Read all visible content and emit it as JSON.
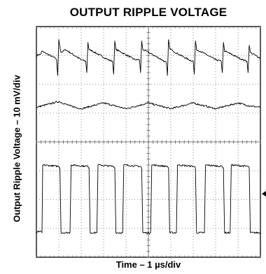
{
  "chart_data": {
    "type": "line",
    "title": "OUTPUT RIPPLE VOLTAGE",
    "xlabel": "Time – 1 µs/div",
    "ylabel": "Output Ripple Voltage – 10 mV/div",
    "grid": true,
    "x_divisions": 10,
    "y_divisions": 8,
    "xlim": [
      0,
      10
    ],
    "ylim": [
      0,
      8
    ],
    "x_unit": "µs",
    "y_unit": "div",
    "series": [
      {
        "values": [
          [
            0.0,
            7.0
          ],
          [
            0.2,
            7.05
          ],
          [
            0.25,
            7.15
          ],
          [
            0.3,
            7.12
          ],
          [
            0.85,
            6.9
          ],
          [
            0.9,
            6.85
          ],
          [
            0.95,
            6.3
          ],
          [
            1.0,
            7.55
          ],
          [
            1.05,
            7.3
          ],
          [
            1.1,
            7.1
          ],
          [
            1.3,
            7.2
          ],
          [
            2.0,
            6.85
          ],
          [
            2.2,
            6.8
          ],
          [
            2.25,
            6.4
          ],
          [
            2.3,
            7.45
          ],
          [
            2.35,
            7.2
          ],
          [
            2.5,
            7.15
          ],
          [
            3.2,
            6.85
          ],
          [
            3.4,
            6.8
          ],
          [
            3.45,
            6.35
          ],
          [
            3.5,
            7.5
          ],
          [
            3.55,
            7.2
          ],
          [
            3.7,
            7.15
          ],
          [
            4.4,
            6.85
          ],
          [
            4.6,
            6.85
          ],
          [
            4.65,
            6.4
          ],
          [
            4.7,
            7.5
          ],
          [
            4.75,
            7.2
          ],
          [
            4.9,
            7.15
          ],
          [
            5.6,
            6.85
          ],
          [
            5.8,
            6.75
          ],
          [
            5.85,
            6.3
          ],
          [
            5.9,
            7.55
          ],
          [
            5.95,
            7.25
          ],
          [
            6.1,
            7.15
          ],
          [
            6.8,
            6.85
          ],
          [
            7.0,
            6.8
          ],
          [
            7.05,
            6.35
          ],
          [
            7.1,
            7.5
          ],
          [
            7.15,
            7.2
          ],
          [
            7.3,
            7.15
          ],
          [
            8.0,
            6.85
          ],
          [
            8.25,
            6.8
          ],
          [
            8.3,
            6.4
          ],
          [
            8.35,
            7.45
          ],
          [
            8.4,
            7.15
          ],
          [
            8.55,
            7.1
          ],
          [
            9.2,
            6.85
          ],
          [
            9.4,
            6.8
          ],
          [
            9.45,
            6.4
          ],
          [
            9.5,
            7.35
          ],
          [
            9.55,
            7.1
          ],
          [
            10.0,
            6.9
          ]
        ]
      },
      {
        "values": [
          [
            0.0,
            5.2
          ],
          [
            0.5,
            5.3
          ],
          [
            1.0,
            5.4
          ],
          [
            1.5,
            5.25
          ],
          [
            2.0,
            5.15
          ],
          [
            2.5,
            5.25
          ],
          [
            3.0,
            5.35
          ],
          [
            3.5,
            5.25
          ],
          [
            4.0,
            5.15
          ],
          [
            4.5,
            5.25
          ],
          [
            5.0,
            5.35
          ],
          [
            5.5,
            5.25
          ],
          [
            6.0,
            5.15
          ],
          [
            6.5,
            5.25
          ],
          [
            7.0,
            5.35
          ],
          [
            7.5,
            5.25
          ],
          [
            8.0,
            5.15
          ],
          [
            8.5,
            5.25
          ],
          [
            9.0,
            5.35
          ],
          [
            9.5,
            5.25
          ],
          [
            10.0,
            5.2
          ]
        ]
      },
      {
        "values": [
          [
            0.0,
            0.85
          ],
          [
            0.15,
            0.9
          ],
          [
            0.25,
            0.85
          ],
          [
            0.28,
            3.2
          ],
          [
            1.0,
            3.15
          ],
          [
            1.05,
            3.1
          ],
          [
            1.1,
            0.85
          ],
          [
            1.5,
            0.85
          ],
          [
            1.55,
            3.2
          ],
          [
            2.3,
            3.15
          ],
          [
            2.35,
            3.1
          ],
          [
            2.4,
            0.85
          ],
          [
            2.7,
            0.85
          ],
          [
            2.75,
            3.2
          ],
          [
            3.45,
            3.15
          ],
          [
            3.5,
            3.1
          ],
          [
            3.55,
            0.85
          ],
          [
            3.85,
            0.85
          ],
          [
            3.9,
            3.2
          ],
          [
            4.65,
            3.15
          ],
          [
            4.7,
            3.1
          ],
          [
            4.75,
            0.85
          ],
          [
            5.1,
            0.85
          ],
          [
            5.15,
            3.2
          ],
          [
            5.85,
            3.15
          ],
          [
            5.9,
            3.1
          ],
          [
            5.95,
            0.85
          ],
          [
            6.25,
            0.85
          ],
          [
            6.3,
            3.2
          ],
          [
            7.05,
            3.15
          ],
          [
            7.1,
            3.1
          ],
          [
            7.15,
            0.85
          ],
          [
            7.5,
            0.85
          ],
          [
            7.55,
            3.2
          ],
          [
            8.3,
            3.15
          ],
          [
            8.35,
            3.1
          ],
          [
            8.4,
            0.85
          ],
          [
            8.65,
            0.85
          ],
          [
            8.7,
            3.2
          ],
          [
            9.45,
            3.15
          ],
          [
            9.5,
            3.1
          ],
          [
            9.55,
            0.85
          ],
          [
            10.0,
            0.85
          ]
        ]
      }
    ]
  }
}
